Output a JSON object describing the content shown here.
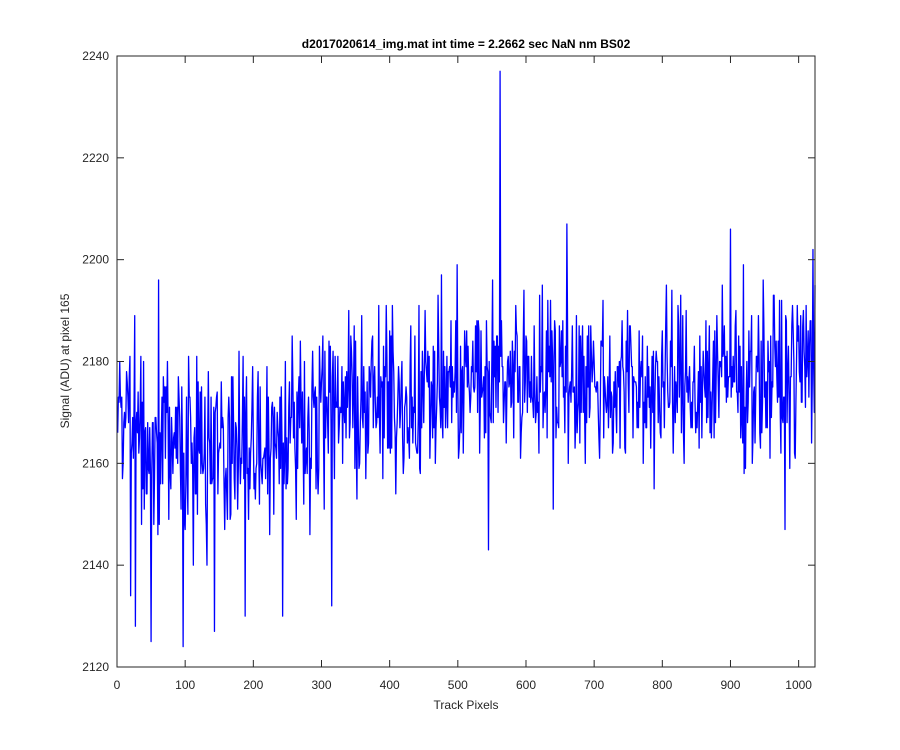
{
  "chart_data": {
    "type": "line",
    "title": "d2017020614_img.mat int time = 2.2662 sec  NaN nm BS02",
    "xlabel": "Track Pixels",
    "ylabel": "Signal (ADU) at pixel 165",
    "xlim": [
      0,
      1024
    ],
    "ylim": [
      2120,
      2240
    ],
    "xticks": [
      0,
      100,
      200,
      300,
      400,
      500,
      600,
      700,
      800,
      900,
      1000
    ],
    "yticks": [
      2120,
      2140,
      2160,
      2180,
      2200,
      2220,
      2240
    ],
    "grid": false,
    "series_color": "#0000ff",
    "series": [
      {
        "anchors_x": [
          1,
          30,
          60,
          100,
          150,
          200,
          250,
          300,
          350,
          400,
          450,
          500,
          550,
          600,
          650,
          700,
          750,
          800,
          850,
          900,
          950,
          1000,
          1024
        ],
        "anchors_y": [
          2172,
          2167,
          2166,
          2163,
          2163,
          2165,
          2167,
          2170,
          2172,
          2172,
          2174,
          2176,
          2177,
          2178,
          2178,
          2176,
          2175,
          2175,
          2176,
          2177,
          2177,
          2178,
          2182
        ],
        "noise_amplitude": 11,
        "spikes": [
          {
            "x": 20,
            "y": 2134
          },
          {
            "x": 27,
            "y": 2128
          },
          {
            "x": 50,
            "y": 2125
          },
          {
            "x": 61,
            "y": 2196
          },
          {
            "x": 97,
            "y": 2124
          },
          {
            "x": 143,
            "y": 2127
          },
          {
            "x": 188,
            "y": 2130
          },
          {
            "x": 243,
            "y": 2130
          },
          {
            "x": 315,
            "y": 2132
          },
          {
            "x": 545,
            "y": 2143
          },
          {
            "x": 562,
            "y": 2237
          },
          {
            "x": 640,
            "y": 2151
          },
          {
            "x": 660,
            "y": 2207
          },
          {
            "x": 900,
            "y": 2206
          },
          {
            "x": 980,
            "y": 2147
          },
          {
            "x": 1021,
            "y": 2202
          }
        ]
      }
    ]
  }
}
